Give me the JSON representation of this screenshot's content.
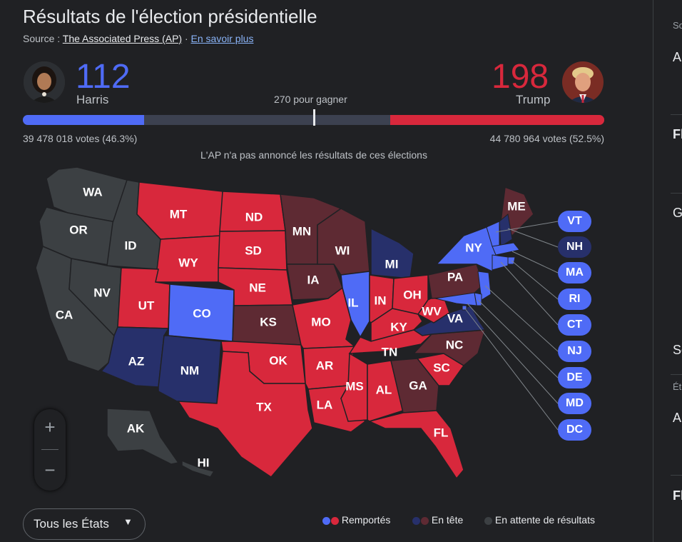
{
  "header": {
    "title": "Résultats de l'élection présidentielle",
    "source_prefix": "Source : ",
    "source_link": "The Associated Press (AP)",
    "separator": " · ",
    "more_link": "En savoir plus"
  },
  "harris": {
    "count": "112",
    "name": "Harris",
    "votes": "39 478 018 votes (46.3%)",
    "color": "#4f6bf6"
  },
  "trump": {
    "count": "198",
    "name": "Trump",
    "votes": "44 780 964 votes (52.5%)",
    "color": "#d8283c"
  },
  "bar": {
    "harris_share": 0.209,
    "trump_share": 0.368,
    "win_label": "270 pour gagner"
  },
  "note": "L'AP n'a pas annoncé les résultats de ces élections",
  "colors": {
    "dem_won": "#4f6bf6",
    "rep_won": "#d8283c",
    "dem_lead": "#27306b",
    "rep_lead": "#5e2a33",
    "pending": "#3c4043"
  },
  "map": {
    "states": [
      {
        "abbr": "WA",
        "status": "pending"
      },
      {
        "abbr": "OR",
        "status": "pending"
      },
      {
        "abbr": "CA",
        "status": "pending"
      },
      {
        "abbr": "ID",
        "status": "pending"
      },
      {
        "abbr": "NV",
        "status": "pending"
      },
      {
        "abbr": "MT",
        "status": "rep_won"
      },
      {
        "abbr": "WY",
        "status": "rep_won"
      },
      {
        "abbr": "UT",
        "status": "rep_won"
      },
      {
        "abbr": "CO",
        "status": "dem_won"
      },
      {
        "abbr": "AZ",
        "status": "dem_lead"
      },
      {
        "abbr": "NM",
        "status": "dem_lead"
      },
      {
        "abbr": "ND",
        "status": "rep_won"
      },
      {
        "abbr": "SD",
        "status": "rep_won"
      },
      {
        "abbr": "NE",
        "status": "rep_won"
      },
      {
        "abbr": "KS",
        "status": "rep_lead"
      },
      {
        "abbr": "OK",
        "status": "rep_won"
      },
      {
        "abbr": "TX",
        "status": "rep_won"
      },
      {
        "abbr": "MN",
        "status": "rep_lead"
      },
      {
        "abbr": "IA",
        "status": "rep_lead"
      },
      {
        "abbr": "MO",
        "status": "rep_won"
      },
      {
        "abbr": "AR",
        "status": "rep_won"
      },
      {
        "abbr": "LA",
        "status": "rep_won"
      },
      {
        "abbr": "WI",
        "status": "rep_lead"
      },
      {
        "abbr": "IL",
        "status": "dem_won"
      },
      {
        "abbr": "MI",
        "status": "dem_lead"
      },
      {
        "abbr": "IN",
        "status": "rep_won"
      },
      {
        "abbr": "OH",
        "status": "rep_won"
      },
      {
        "abbr": "KY",
        "status": "rep_won"
      },
      {
        "abbr": "TN",
        "status": "rep_won"
      },
      {
        "abbr": "MS",
        "status": "rep_won"
      },
      {
        "abbr": "AL",
        "status": "rep_won"
      },
      {
        "abbr": "GA",
        "status": "rep_lead"
      },
      {
        "abbr": "FL",
        "status": "rep_won"
      },
      {
        "abbr": "SC",
        "status": "rep_won"
      },
      {
        "abbr": "NC",
        "status": "rep_lead"
      },
      {
        "abbr": "VA",
        "status": "dem_lead"
      },
      {
        "abbr": "WV",
        "status": "rep_won"
      },
      {
        "abbr": "PA",
        "status": "rep_lead"
      },
      {
        "abbr": "NY",
        "status": "dem_won"
      },
      {
        "abbr": "ME",
        "status": "rep_lead"
      },
      {
        "abbr": "AK",
        "status": "pending"
      },
      {
        "abbr": "HI",
        "status": "pending"
      }
    ],
    "small_states": [
      {
        "abbr": "VT",
        "status": "dem_won"
      },
      {
        "abbr": "NH",
        "status": "dem_lead"
      },
      {
        "abbr": "MA",
        "status": "dem_won"
      },
      {
        "abbr": "RI",
        "status": "dem_won"
      },
      {
        "abbr": "CT",
        "status": "dem_won"
      },
      {
        "abbr": "NJ",
        "status": "dem_won"
      },
      {
        "abbr": "DE",
        "status": "dem_won"
      },
      {
        "abbr": "MD",
        "status": "dem_won"
      },
      {
        "abbr": "DC",
        "status": "dem_won"
      }
    ]
  },
  "controls": {
    "zoom_in": "+",
    "zoom_out": "−",
    "state_select": "Tous les États"
  },
  "legend": {
    "won": "Remportés",
    "leading": "En tête",
    "pending": "En attente de résultats"
  },
  "right_panel": {
    "items": [
      "So",
      "A",
      "Fl",
      "G",
      "So",
      "Ét",
      "A",
      "Fl"
    ]
  }
}
